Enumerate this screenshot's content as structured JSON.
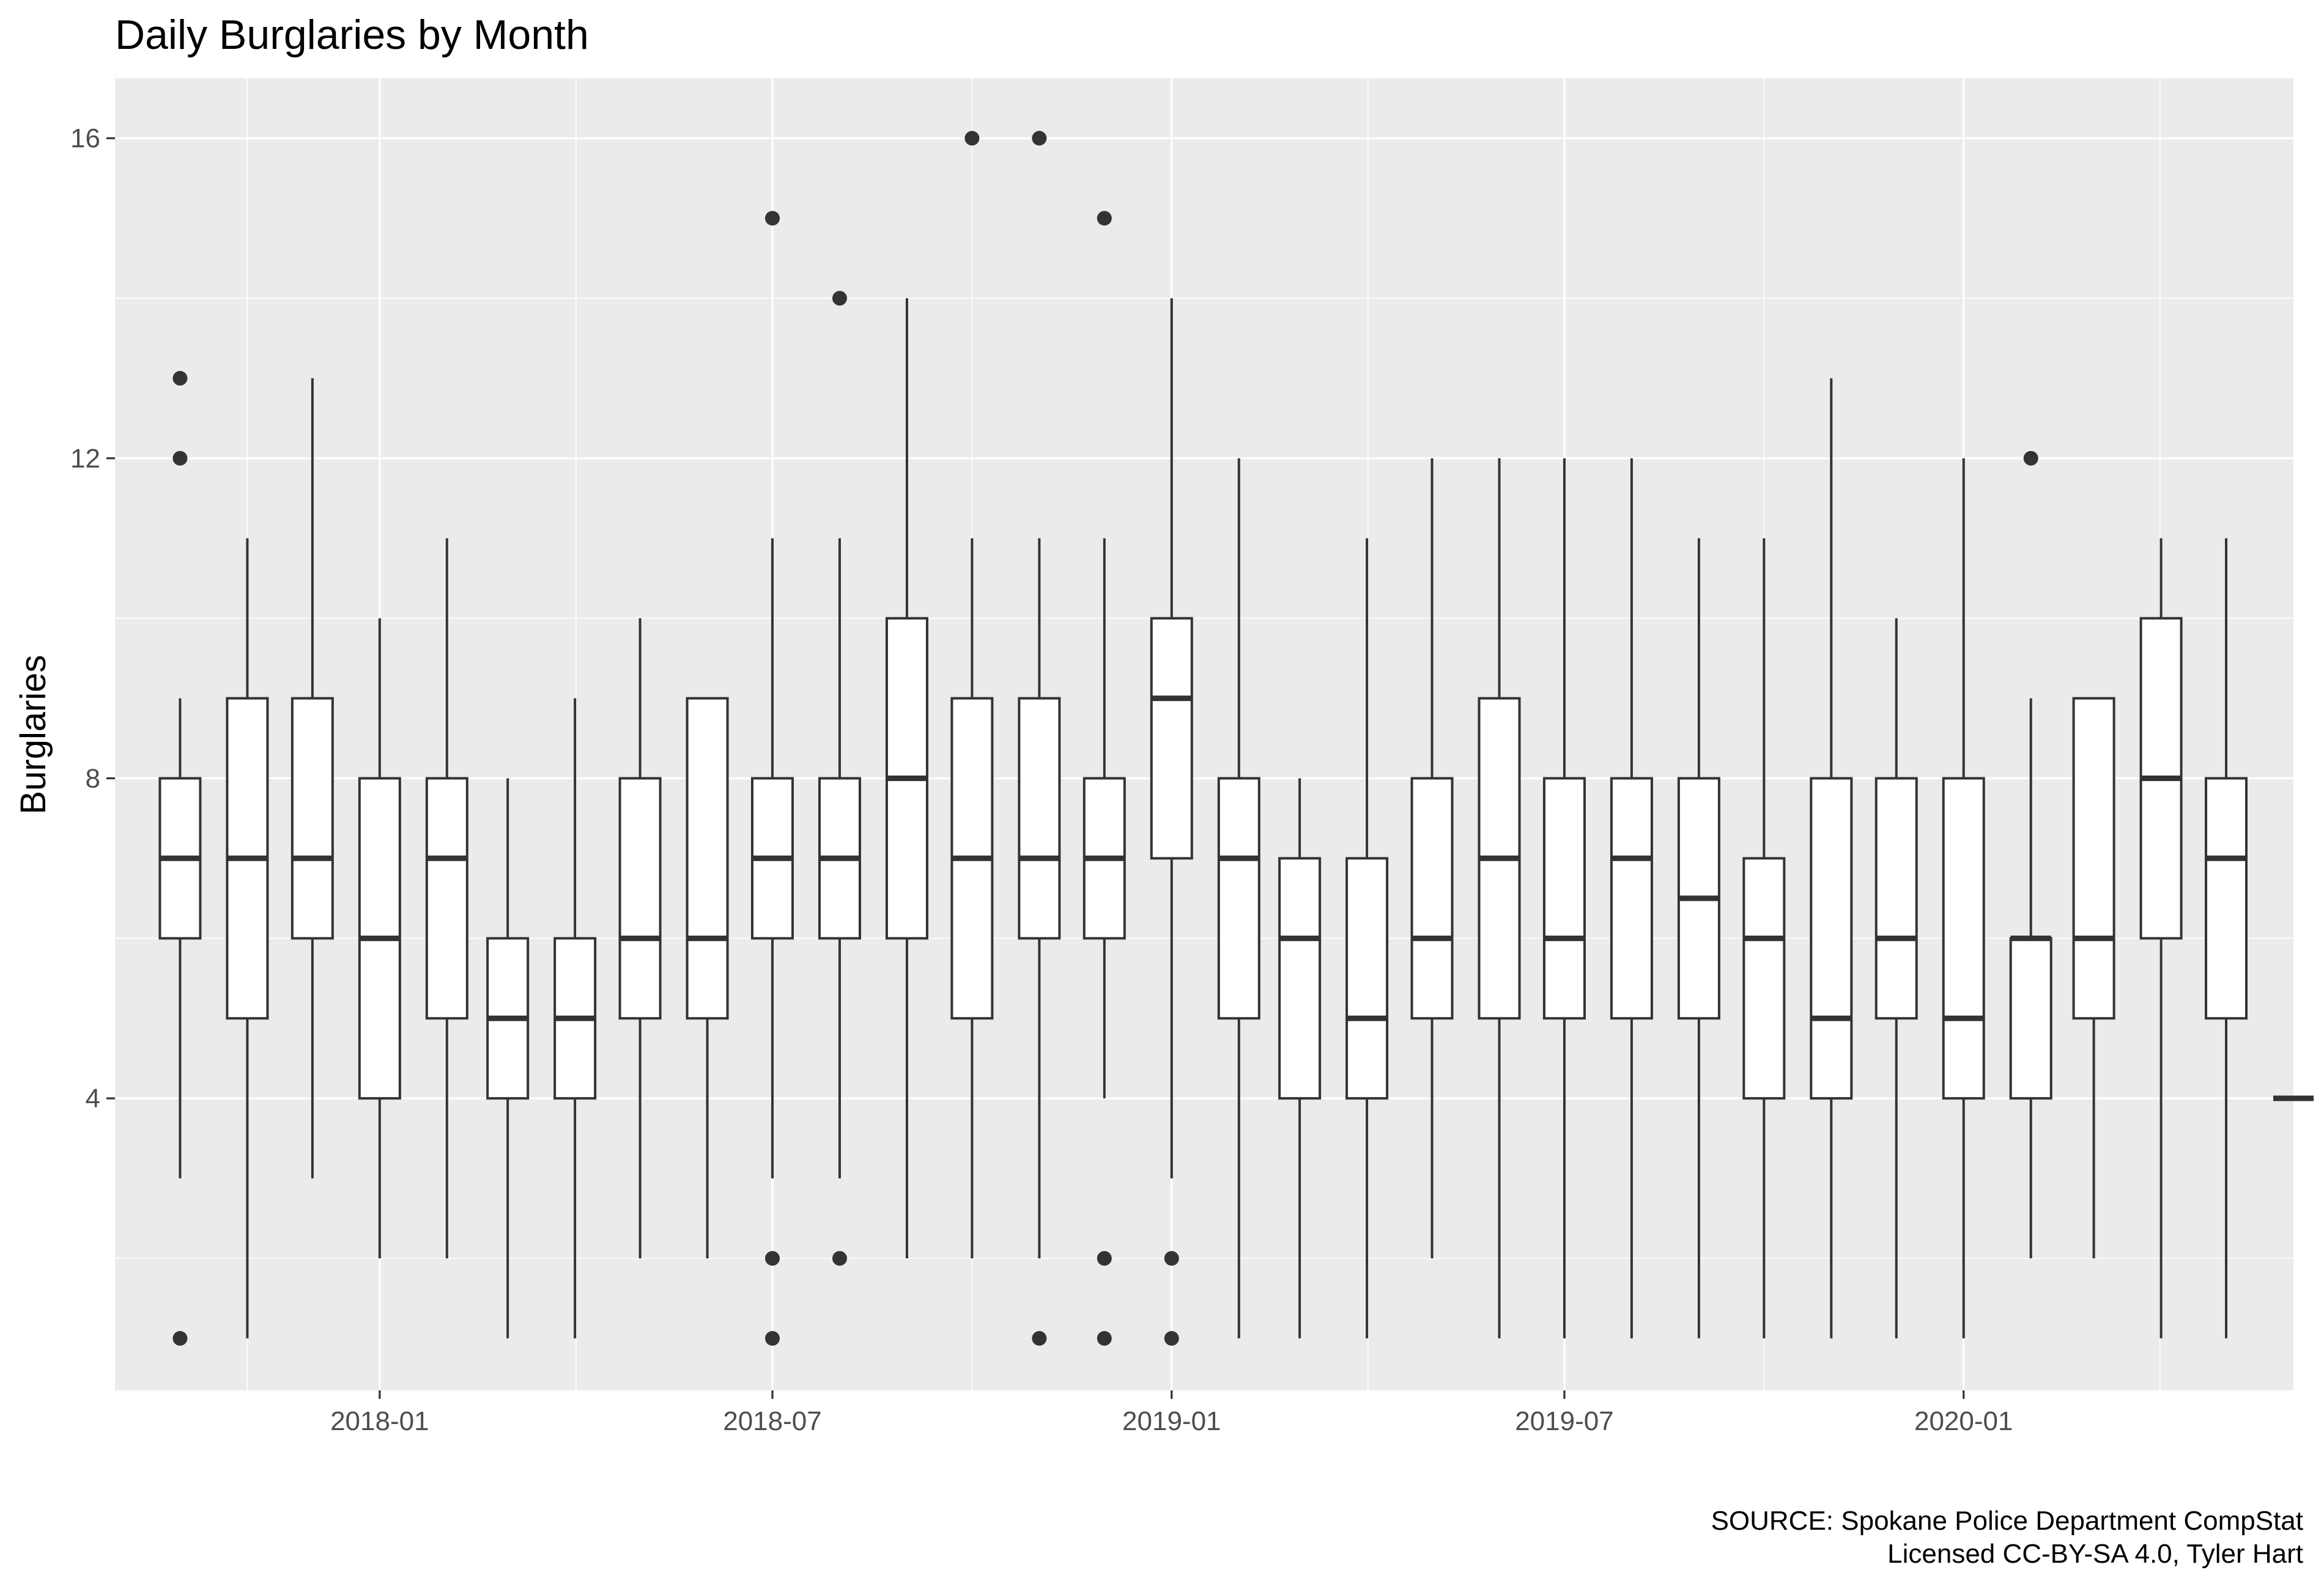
{
  "chart_data": {
    "type": "boxplot",
    "title": "Daily Burglaries by Month",
    "xlabel": "",
    "ylabel": "Burglaries",
    "caption": [
      "SOURCE: Spokane Police Department CompStat",
      "Licensed CC-BY-SA 4.0, Tyler Hart"
    ],
    "y_ticks": [
      4,
      8,
      12,
      16
    ],
    "y_minor_ticks": [
      2,
      6,
      10,
      14
    ],
    "ylim": [
      0.35,
      16.75
    ],
    "x_ticks": [
      "2018-01",
      "2018-07",
      "2019-01",
      "2019-07",
      "2020-01"
    ],
    "x_range": [
      "2017-09-01",
      "2020-06-01"
    ],
    "grid": true,
    "background": "#ebebeb",
    "box_fill": "#ffffff",
    "line_color": "#333333",
    "boxes": [
      {
        "month": "2017-10",
        "lower": 3,
        "q1": 6,
        "median": 7,
        "q3": 8,
        "upper": 9,
        "outliers": [
          1,
          12,
          13
        ]
      },
      {
        "month": "2017-11",
        "lower": 1,
        "q1": 5,
        "median": 7,
        "q3": 9,
        "upper": 11,
        "outliers": []
      },
      {
        "month": "2017-12",
        "lower": 3,
        "q1": 6,
        "median": 7,
        "q3": 9,
        "upper": 13,
        "outliers": []
      },
      {
        "month": "2018-01",
        "lower": 2,
        "q1": 4,
        "median": 6,
        "q3": 8,
        "upper": 10,
        "outliers": []
      },
      {
        "month": "2018-02",
        "lower": 2,
        "q1": 5,
        "median": 7,
        "q3": 8,
        "upper": 11,
        "outliers": []
      },
      {
        "month": "2018-03",
        "lower": 1,
        "q1": 4,
        "median": 5,
        "q3": 6,
        "upper": 8,
        "outliers": []
      },
      {
        "month": "2018-04",
        "lower": 1,
        "q1": 4,
        "median": 5,
        "q3": 6,
        "upper": 9,
        "outliers": []
      },
      {
        "month": "2018-05",
        "lower": 2,
        "q1": 5,
        "median": 6,
        "q3": 8,
        "upper": 10,
        "outliers": []
      },
      {
        "month": "2018-06",
        "lower": 2,
        "q1": 5,
        "median": 6,
        "q3": 9,
        "upper": 9,
        "outliers": []
      },
      {
        "month": "2018-07",
        "lower": 3,
        "q1": 6,
        "median": 7,
        "q3": 8,
        "upper": 11,
        "outliers": [
          1,
          2,
          15
        ]
      },
      {
        "month": "2018-08",
        "lower": 3,
        "q1": 6,
        "median": 7,
        "q3": 8,
        "upper": 11,
        "outliers": [
          2,
          14
        ]
      },
      {
        "month": "2018-09",
        "lower": 2,
        "q1": 6,
        "median": 8,
        "q3": 10,
        "upper": 14,
        "outliers": []
      },
      {
        "month": "2018-10",
        "lower": 2,
        "q1": 5,
        "median": 7,
        "q3": 9,
        "upper": 11,
        "outliers": [
          16
        ]
      },
      {
        "month": "2018-11",
        "lower": 2,
        "q1": 6,
        "median": 7,
        "q3": 9,
        "upper": 11,
        "outliers": [
          1,
          16
        ]
      },
      {
        "month": "2018-12",
        "lower": 4,
        "q1": 6,
        "median": 7,
        "q3": 8,
        "upper": 11,
        "outliers": [
          1,
          2,
          15
        ]
      },
      {
        "month": "2019-01",
        "lower": 3,
        "q1": 7,
        "median": 9,
        "q3": 10,
        "upper": 14,
        "outliers": [
          1,
          2
        ]
      },
      {
        "month": "2019-02",
        "lower": 1,
        "q1": 5,
        "median": 7,
        "q3": 8,
        "upper": 12,
        "outliers": []
      },
      {
        "month": "2019-03",
        "lower": 1,
        "q1": 4,
        "median": 6,
        "q3": 7,
        "upper": 8,
        "outliers": []
      },
      {
        "month": "2019-04",
        "lower": 1,
        "q1": 4,
        "median": 5,
        "q3": 7,
        "upper": 11,
        "outliers": []
      },
      {
        "month": "2019-05",
        "lower": 2,
        "q1": 5,
        "median": 6,
        "q3": 8,
        "upper": 12,
        "outliers": []
      },
      {
        "month": "2019-06",
        "lower": 1,
        "q1": 5,
        "median": 7,
        "q3": 9,
        "upper": 12,
        "outliers": []
      },
      {
        "month": "2019-07",
        "lower": 1,
        "q1": 5,
        "median": 6,
        "q3": 8,
        "upper": 12,
        "outliers": []
      },
      {
        "month": "2019-08",
        "lower": 1,
        "q1": 5,
        "median": 7,
        "q3": 8,
        "upper": 12,
        "outliers": []
      },
      {
        "month": "2019-09",
        "lower": 1,
        "q1": 5,
        "median": 6.5,
        "q3": 8,
        "upper": 11,
        "outliers": []
      },
      {
        "month": "2019-10",
        "lower": 1,
        "q1": 4,
        "median": 6,
        "q3": 7,
        "upper": 11,
        "outliers": []
      },
      {
        "month": "2019-11",
        "lower": 1,
        "q1": 4,
        "median": 5,
        "q3": 8,
        "upper": 13,
        "outliers": []
      },
      {
        "month": "2019-12",
        "lower": 1,
        "q1": 5,
        "median": 6,
        "q3": 8,
        "upper": 10,
        "outliers": []
      },
      {
        "month": "2020-01",
        "lower": 1,
        "q1": 4,
        "median": 5,
        "q3": 8,
        "upper": 12,
        "outliers": []
      },
      {
        "month": "2020-02",
        "lower": 2,
        "q1": 4,
        "median": 6,
        "q3": 6,
        "upper": 9,
        "outliers": [
          12
        ]
      },
      {
        "month": "2020-03",
        "lower": 2,
        "q1": 5,
        "median": 6,
        "q3": 9,
        "upper": 9,
        "outliers": []
      },
      {
        "month": "2020-04",
        "lower": 1,
        "q1": 6,
        "median": 8,
        "q3": 10,
        "upper": 11,
        "outliers": []
      },
      {
        "month": "2020-05",
        "lower": 1,
        "q1": 5,
        "median": 7,
        "q3": 8,
        "upper": 11,
        "outliers": []
      },
      {
        "month": "2020-06",
        "lower": 4,
        "q1": 4,
        "median": 4,
        "q3": 4,
        "upper": 4,
        "outliers": []
      }
    ]
  }
}
